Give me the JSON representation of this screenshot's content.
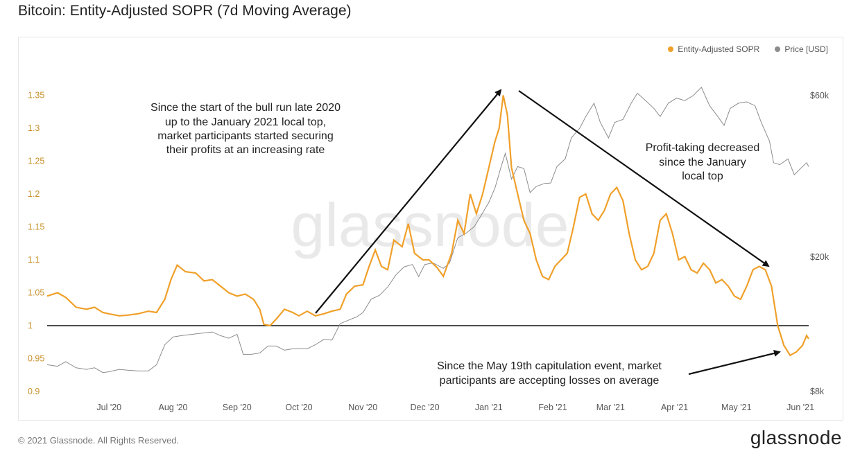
{
  "page": {
    "title": "Bitcoin: Entity-Adjusted SOPR (7d Moving Average)",
    "copyright": "© 2021 Glassnode. All Rights Reserved.",
    "logo_text": "glassnode",
    "watermark": "glassnode"
  },
  "colors": {
    "sopr": "#f0a02a",
    "price": "#8c8c8c",
    "axis_left": "#c8902a",
    "axis_text": "#555555",
    "baseline": "#111111"
  },
  "chart_data": {
    "type": "line",
    "title": "Bitcoin: Entity-Adjusted SOPR (7d Moving Average)",
    "legend": [
      "Entity-Adjusted SOPR",
      "Price [USD]"
    ],
    "legend_position": "top-right",
    "grid": false,
    "x_ticks": [
      "Jul '20",
      "Aug '20",
      "Sep '20",
      "Oct '20",
      "Nov '20",
      "Dec '20",
      "Jan '21",
      "Feb '21",
      "Mar '21",
      "Apr '21",
      "May '21",
      "Jun '21"
    ],
    "x_tick_dates": [
      "2020-07-01",
      "2020-08-01",
      "2020-09-01",
      "2020-10-01",
      "2020-11-01",
      "2020-12-01",
      "2021-01-01",
      "2021-02-01",
      "2021-03-01",
      "2021-04-01",
      "2021-05-01",
      "2021-06-01"
    ],
    "x_range": [
      "2020-06-01",
      "2021-06-05"
    ],
    "y_left": {
      "ticks": [
        "0.9",
        "0.95",
        "1",
        "1.05",
        "1.1",
        "1.15",
        "1.2",
        "1.25",
        "1.3",
        "1.35"
      ],
      "range": [
        0.9,
        1.36
      ]
    },
    "y_right": {
      "ticks": [
        "$8k",
        "$20k",
        "$60k"
      ],
      "tick_values": [
        8000,
        20000,
        60000
      ],
      "scale": "log"
    },
    "reference_line": 1,
    "series": [
      {
        "name": "Entity-Adjusted SOPR",
        "axis": "left",
        "points": [
          [
            "2020-06-01",
            1.045
          ],
          [
            "2020-06-06",
            1.05
          ],
          [
            "2020-06-10",
            1.043
          ],
          [
            "2020-06-15",
            1.028
          ],
          [
            "2020-06-20",
            1.025
          ],
          [
            "2020-06-24",
            1.028
          ],
          [
            "2020-06-28",
            1.02
          ],
          [
            "2020-07-01",
            1.018
          ],
          [
            "2020-07-06",
            1.015
          ],
          [
            "2020-07-10",
            1.016
          ],
          [
            "2020-07-15",
            1.018
          ],
          [
            "2020-07-20",
            1.022
          ],
          [
            "2020-07-24",
            1.02
          ],
          [
            "2020-07-28",
            1.04
          ],
          [
            "2020-07-31",
            1.07
          ],
          [
            "2020-08-03",
            1.092
          ],
          [
            "2020-08-07",
            1.082
          ],
          [
            "2020-08-12",
            1.08
          ],
          [
            "2020-08-16",
            1.068
          ],
          [
            "2020-08-20",
            1.07
          ],
          [
            "2020-08-24",
            1.06
          ],
          [
            "2020-08-28",
            1.05
          ],
          [
            "2020-09-01",
            1.045
          ],
          [
            "2020-09-05",
            1.048
          ],
          [
            "2020-09-09",
            1.04
          ],
          [
            "2020-09-12",
            1.025
          ],
          [
            "2020-09-14",
            1.002
          ],
          [
            "2020-09-17",
            1.0
          ],
          [
            "2020-09-20",
            1.01
          ],
          [
            "2020-09-24",
            1.025
          ],
          [
            "2020-09-28",
            1.02
          ],
          [
            "2020-10-01",
            1.015
          ],
          [
            "2020-10-05",
            1.022
          ],
          [
            "2020-10-09",
            1.015
          ],
          [
            "2020-10-13",
            1.018
          ],
          [
            "2020-10-17",
            1.022
          ],
          [
            "2020-10-21",
            1.025
          ],
          [
            "2020-10-24",
            1.048
          ],
          [
            "2020-10-28",
            1.06
          ],
          [
            "2020-11-01",
            1.062
          ],
          [
            "2020-11-04",
            1.09
          ],
          [
            "2020-11-07",
            1.115
          ],
          [
            "2020-11-10",
            1.09
          ],
          [
            "2020-11-13",
            1.085
          ],
          [
            "2020-11-16",
            1.13
          ],
          [
            "2020-11-20",
            1.12
          ],
          [
            "2020-11-23",
            1.155
          ],
          [
            "2020-11-26",
            1.11
          ],
          [
            "2020-11-30",
            1.1
          ],
          [
            "2020-12-03",
            1.1
          ],
          [
            "2020-12-07",
            1.088
          ],
          [
            "2020-12-10",
            1.075
          ],
          [
            "2020-12-14",
            1.11
          ],
          [
            "2020-12-17",
            1.16
          ],
          [
            "2020-12-20",
            1.14
          ],
          [
            "2020-12-23",
            1.2
          ],
          [
            "2020-12-26",
            1.17
          ],
          [
            "2020-12-29",
            1.2
          ],
          [
            "2021-01-01",
            1.24
          ],
          [
            "2021-01-04",
            1.28
          ],
          [
            "2021-01-06",
            1.3
          ],
          [
            "2021-01-08",
            1.35
          ],
          [
            "2021-01-10",
            1.32
          ],
          [
            "2021-01-12",
            1.24
          ],
          [
            "2021-01-15",
            1.2
          ],
          [
            "2021-01-18",
            1.16
          ],
          [
            "2021-01-21",
            1.14
          ],
          [
            "2021-01-24",
            1.1
          ],
          [
            "2021-01-27",
            1.075
          ],
          [
            "2021-01-30",
            1.07
          ],
          [
            "2021-02-02",
            1.09
          ],
          [
            "2021-02-05",
            1.1
          ],
          [
            "2021-02-08",
            1.11
          ],
          [
            "2021-02-11",
            1.15
          ],
          [
            "2021-02-14",
            1.195
          ],
          [
            "2021-02-17",
            1.2
          ],
          [
            "2021-02-20",
            1.17
          ],
          [
            "2021-02-23",
            1.16
          ],
          [
            "2021-02-26",
            1.175
          ],
          [
            "2021-03-01",
            1.2
          ],
          [
            "2021-03-04",
            1.21
          ],
          [
            "2021-03-07",
            1.19
          ],
          [
            "2021-03-10",
            1.14
          ],
          [
            "2021-03-13",
            1.1
          ],
          [
            "2021-03-16",
            1.085
          ],
          [
            "2021-03-19",
            1.09
          ],
          [
            "2021-03-22",
            1.11
          ],
          [
            "2021-03-25",
            1.16
          ],
          [
            "2021-03-28",
            1.17
          ],
          [
            "2021-03-31",
            1.14
          ],
          [
            "2021-04-03",
            1.1
          ],
          [
            "2021-04-06",
            1.105
          ],
          [
            "2021-04-09",
            1.085
          ],
          [
            "2021-04-12",
            1.08
          ],
          [
            "2021-04-15",
            1.095
          ],
          [
            "2021-04-18",
            1.085
          ],
          [
            "2021-04-21",
            1.065
          ],
          [
            "2021-04-24",
            1.07
          ],
          [
            "2021-04-27",
            1.06
          ],
          [
            "2021-04-30",
            1.045
          ],
          [
            "2021-05-03",
            1.04
          ],
          [
            "2021-05-06",
            1.06
          ],
          [
            "2021-05-09",
            1.085
          ],
          [
            "2021-05-12",
            1.09
          ],
          [
            "2021-05-15",
            1.085
          ],
          [
            "2021-05-18",
            1.06
          ],
          [
            "2021-05-21",
            1.0
          ],
          [
            "2021-05-24",
            0.97
          ],
          [
            "2021-05-27",
            0.955
          ],
          [
            "2021-05-30",
            0.96
          ],
          [
            "2021-06-02",
            0.97
          ],
          [
            "2021-06-04",
            0.985
          ],
          [
            "2021-06-05",
            0.98
          ]
        ]
      },
      {
        "name": "Price [USD]",
        "axis": "right",
        "points": [
          [
            "2020-06-01",
            9600
          ],
          [
            "2020-06-06",
            9500
          ],
          [
            "2020-06-10",
            9800
          ],
          [
            "2020-06-15",
            9400
          ],
          [
            "2020-06-20",
            9300
          ],
          [
            "2020-06-24",
            9400
          ],
          [
            "2020-06-28",
            9100
          ],
          [
            "2020-07-01",
            9150
          ],
          [
            "2020-07-06",
            9300
          ],
          [
            "2020-07-10",
            9250
          ],
          [
            "2020-07-15",
            9200
          ],
          [
            "2020-07-20",
            9200
          ],
          [
            "2020-07-24",
            9600
          ],
          [
            "2020-07-28",
            11000
          ],
          [
            "2020-08-01",
            11600
          ],
          [
            "2020-08-05",
            11700
          ],
          [
            "2020-08-10",
            11800
          ],
          [
            "2020-08-15",
            11900
          ],
          [
            "2020-08-20",
            12000
          ],
          [
            "2020-08-24",
            11700
          ],
          [
            "2020-08-28",
            11500
          ],
          [
            "2020-09-01",
            11800
          ],
          [
            "2020-09-04",
            10300
          ],
          [
            "2020-09-08",
            10300
          ],
          [
            "2020-09-12",
            10400
          ],
          [
            "2020-09-16",
            10900
          ],
          [
            "2020-09-20",
            10900
          ],
          [
            "2020-09-24",
            10600
          ],
          [
            "2020-09-28",
            10700
          ],
          [
            "2020-10-01",
            10700
          ],
          [
            "2020-10-05",
            10700
          ],
          [
            "2020-10-09",
            11000
          ],
          [
            "2020-10-13",
            11400
          ],
          [
            "2020-10-17",
            11350
          ],
          [
            "2020-10-21",
            12700
          ],
          [
            "2020-10-25",
            13000
          ],
          [
            "2020-10-29",
            13300
          ],
          [
            "2020-11-01",
            13700
          ],
          [
            "2020-11-05",
            15000
          ],
          [
            "2020-11-09",
            15400
          ],
          [
            "2020-11-13",
            16300
          ],
          [
            "2020-11-17",
            17700
          ],
          [
            "2020-11-21",
            18700
          ],
          [
            "2020-11-25",
            19000
          ],
          [
            "2020-11-28",
            17500
          ],
          [
            "2020-12-01",
            19000
          ],
          [
            "2020-12-05",
            19200
          ],
          [
            "2020-12-10",
            18500
          ],
          [
            "2020-12-13",
            19200
          ],
          [
            "2020-12-17",
            22800
          ],
          [
            "2020-12-21",
            23500
          ],
          [
            "2020-12-25",
            24600
          ],
          [
            "2020-12-29",
            27000
          ],
          [
            "2021-01-01",
            29000
          ],
          [
            "2021-01-04",
            32000
          ],
          [
            "2021-01-07",
            37000
          ],
          [
            "2021-01-09",
            40500
          ],
          [
            "2021-01-12",
            34000
          ],
          [
            "2021-01-15",
            37000
          ],
          [
            "2021-01-18",
            36500
          ],
          [
            "2021-01-21",
            31000
          ],
          [
            "2021-01-24",
            32300
          ],
          [
            "2021-01-28",
            33000
          ],
          [
            "2021-01-31",
            33100
          ],
          [
            "2021-02-03",
            37000
          ],
          [
            "2021-02-07",
            39000
          ],
          [
            "2021-02-10",
            45000
          ],
          [
            "2021-02-14",
            48000
          ],
          [
            "2021-02-17",
            52000
          ],
          [
            "2021-02-21",
            57000
          ],
          [
            "2021-02-24",
            50000
          ],
          [
            "2021-02-28",
            45000
          ],
          [
            "2021-03-03",
            50000
          ],
          [
            "2021-03-07",
            51000
          ],
          [
            "2021-03-11",
            57000
          ],
          [
            "2021-03-14",
            61000
          ],
          [
            "2021-03-18",
            58000
          ],
          [
            "2021-03-22",
            55000
          ],
          [
            "2021-03-25",
            52000
          ],
          [
            "2021-03-29",
            57000
          ],
          [
            "2021-04-02",
            59000
          ],
          [
            "2021-04-06",
            58000
          ],
          [
            "2021-04-10",
            60000
          ],
          [
            "2021-04-14",
            63500
          ],
          [
            "2021-04-18",
            56000
          ],
          [
            "2021-04-22",
            52000
          ],
          [
            "2021-04-25",
            49000
          ],
          [
            "2021-04-28",
            55000
          ],
          [
            "2021-05-02",
            57000
          ],
          [
            "2021-05-06",
            57500
          ],
          [
            "2021-05-10",
            56000
          ],
          [
            "2021-05-13",
            50000
          ],
          [
            "2021-05-17",
            44000
          ],
          [
            "2021-05-19",
            38000
          ],
          [
            "2021-05-22",
            37500
          ],
          [
            "2021-05-26",
            39000
          ],
          [
            "2021-05-29",
            35000
          ],
          [
            "2021-06-01",
            36500
          ],
          [
            "2021-06-04",
            38000
          ],
          [
            "2021-06-05",
            37000
          ]
        ]
      }
    ],
    "annotations": [
      "Since the start of the bull run late 2020 up to the January 2021 local top, market participants started securing their profits at an increasing rate",
      "Profit-taking decreased since the January local top",
      "Since the May 19th capitulation event, market participants are accepting losses on average"
    ]
  },
  "annotation_lines": {
    "a1": [
      "Since the start of the bull run late 2020",
      "up to the January 2021 local top,",
      "market participants started securing",
      "their profits at an increasing rate"
    ],
    "a2": [
      "Profit-taking decreased",
      "since the January",
      "local top"
    ],
    "a3": [
      "Since the May 19th capitulation event, market",
      "participants are accepting losses on average"
    ]
  }
}
